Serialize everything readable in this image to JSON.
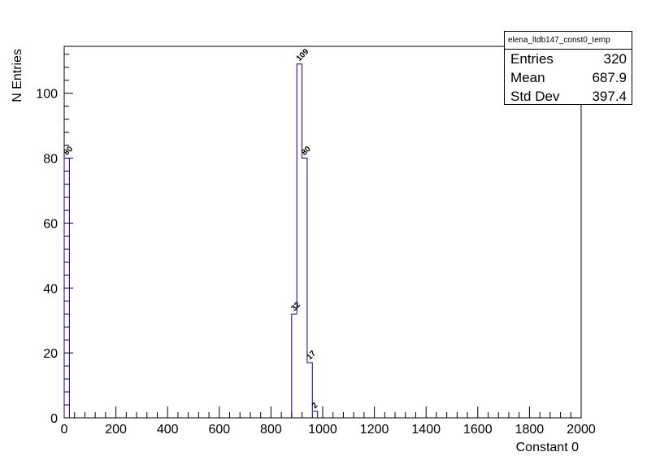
{
  "chart_data": {
    "type": "bar",
    "title": "",
    "xlabel": "Constant 0",
    "ylabel": "N Entries",
    "xlim": [
      0,
      2000
    ],
    "ylim": [
      0,
      114.45
    ],
    "x_ticks": [
      0,
      200,
      400,
      600,
      800,
      1000,
      1200,
      1400,
      1600,
      1800,
      2000
    ],
    "y_ticks": [
      0,
      20,
      40,
      60,
      80,
      100
    ],
    "grid": false,
    "bin_width": 20,
    "bins": [
      {
        "x0": 0,
        "x1": 20,
        "value": 80
      },
      {
        "x0": 880,
        "x1": 900,
        "value": 32
      },
      {
        "x0": 900,
        "x1": 920,
        "value": 109
      },
      {
        "x0": 920,
        "x1": 940,
        "value": 80
      },
      {
        "x0": 940,
        "x1": 960,
        "value": 17
      },
      {
        "x0": 960,
        "x1": 980,
        "value": 2
      }
    ],
    "line_color": "#000099"
  },
  "stats": {
    "name": "elena_ltdb147_const0_temp",
    "rows": [
      {
        "label": "Entries",
        "value": "320"
      },
      {
        "label": "Mean",
        "value": "687.9"
      },
      {
        "label": "Std Dev",
        "value": "397.4"
      }
    ]
  }
}
